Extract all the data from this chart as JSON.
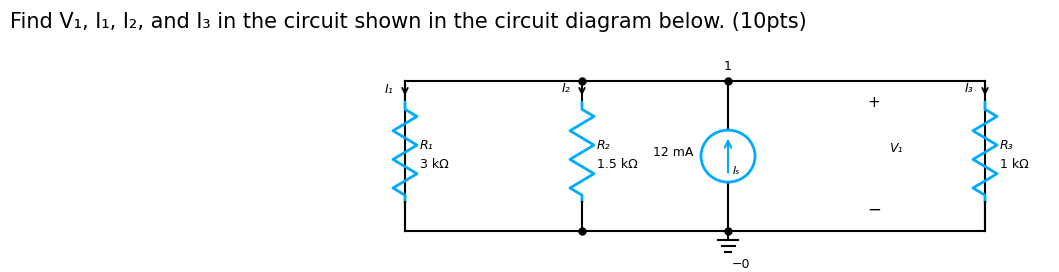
{
  "title": "Find V₁, I₁, I₂, and I₃ in the circuit shown in the circuit diagram below. (10pts)",
  "title_fontsize": 15,
  "bg_color": "#ffffff",
  "wire_color": "#000000",
  "resistor_color": "#00aaff",
  "current_source_color": "#00aaff",
  "node1_label": "1",
  "node0_label": "−0",
  "R1_label": "R₁",
  "R1_value": "3 kΩ",
  "R2_label": "R₂",
  "R2_value": "1.5 kΩ",
  "R3_label": "R₃",
  "R3_value": "1 kΩ",
  "Is_label": "12 mA",
  "I1_label": "I₁",
  "I2_label": "I₂",
  "I3_label": "I₃",
  "V1_label": "V₁",
  "Is_subscript": "Iₛ",
  "plus_label": "+",
  "minus_label": "−"
}
